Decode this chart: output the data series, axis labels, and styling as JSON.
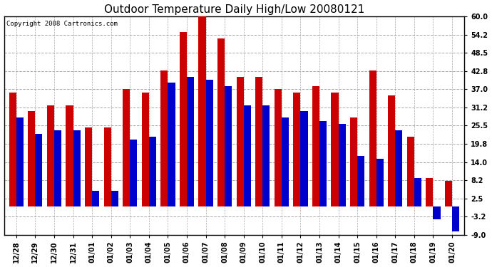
{
  "title": "Outdoor Temperature Daily High/Low 20080121",
  "copyright_text": "Copyright 2008 Cartronics.com",
  "dates": [
    "12/28",
    "12/29",
    "12/30",
    "12/31",
    "01/01",
    "01/02",
    "01/03",
    "01/04",
    "01/05",
    "01/06",
    "01/07",
    "01/08",
    "01/09",
    "01/10",
    "01/11",
    "01/12",
    "01/13",
    "01/14",
    "01/15",
    "01/16",
    "01/17",
    "01/18",
    "01/19",
    "01/20"
  ],
  "highs": [
    36.0,
    30.0,
    32.0,
    32.0,
    25.0,
    25.0,
    37.0,
    36.0,
    43.0,
    55.0,
    62.0,
    53.0,
    41.0,
    41.0,
    37.0,
    36.0,
    38.0,
    36.0,
    28.0,
    43.0,
    35.0,
    22.0,
    9.0,
    8.0
  ],
  "lows": [
    28.0,
    23.0,
    24.0,
    24.0,
    5.0,
    5.0,
    21.0,
    22.0,
    39.0,
    41.0,
    40.0,
    38.0,
    32.0,
    32.0,
    28.0,
    30.0,
    27.0,
    26.0,
    16.0,
    15.0,
    24.0,
    9.0,
    -4.0,
    -8.0
  ],
  "high_color": "#cc0000",
  "low_color": "#0000cc",
  "background_color": "#ffffff",
  "grid_color": "#aaaaaa",
  "yticks": [
    60.0,
    54.2,
    48.5,
    42.8,
    37.0,
    31.2,
    25.5,
    19.8,
    14.0,
    8.2,
    2.5,
    -3.2,
    -9.0
  ],
  "ylim_min": -9.0,
  "ylim_max": 60.0,
  "bar_width": 0.38,
  "title_fontsize": 11,
  "tick_fontsize": 7,
  "copyright_fontsize": 6.5
}
